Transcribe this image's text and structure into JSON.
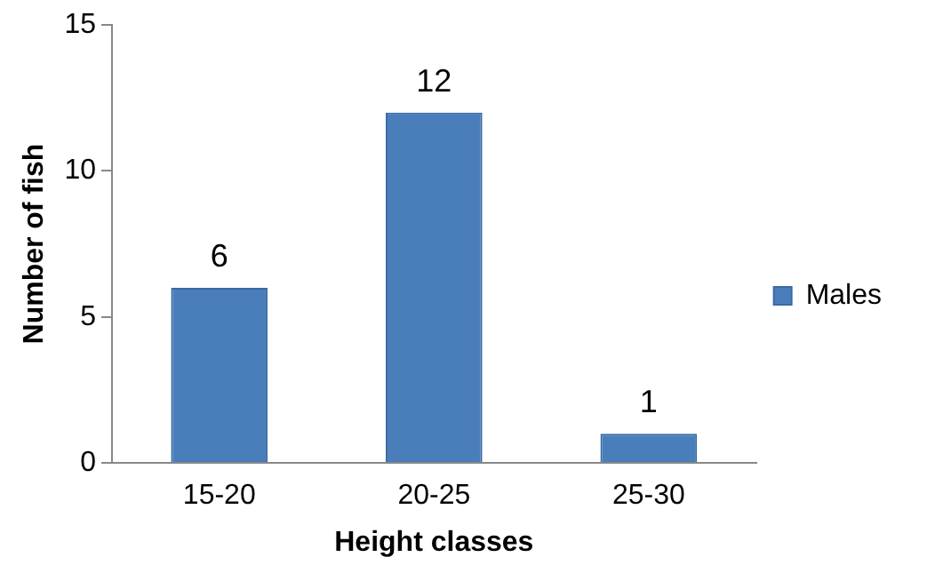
{
  "chart_data": {
    "type": "bar",
    "xlabel": "Height classes",
    "ylabel": "Number of fish",
    "categories": [
      "15-20",
      "20-25",
      "25-30"
    ],
    "series": [
      {
        "name": "Males",
        "color": "#4a7ebb",
        "values": [
          6,
          12,
          1
        ]
      }
    ],
    "ylim": [
      0,
      15
    ],
    "yticks": [
      0,
      5,
      10,
      15
    ],
    "grid": false,
    "legend": "right",
    "data_labels": true
  }
}
